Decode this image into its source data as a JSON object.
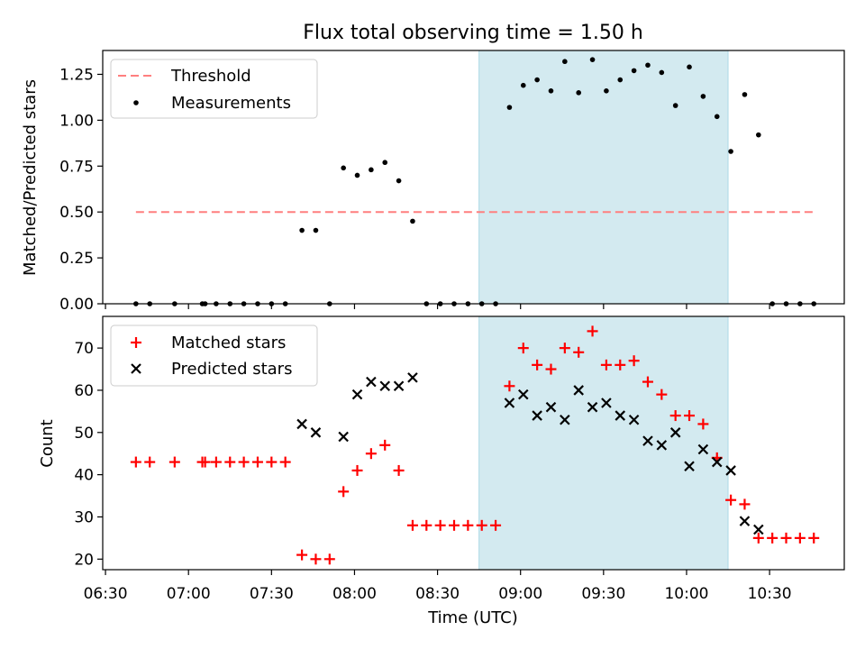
{
  "title": "Flux total observing time = 1.50 h",
  "xlabel": "Time (UTC)",
  "x_ticks": [
    "06:30",
    "07:00",
    "07:30",
    "08:00",
    "08:30",
    "09:00",
    "09:30",
    "10:00",
    "10:30"
  ],
  "colors": {
    "threshold": "#ff7f7f",
    "measurement": "#000000",
    "matched": "#ff0000",
    "predicted": "#000000",
    "shade_fill": "#d3eaf0",
    "shade_edge": "#add8e6"
  },
  "chart_data": [
    {
      "type": "scatter",
      "panel": "top",
      "ylabel": "Matched/Predicted stars",
      "ylim": [
        0,
        1.38
      ],
      "xlim": [
        "06:29",
        "10:57"
      ],
      "y_ticks": [
        "0.00",
        "0.25",
        "0.50",
        "0.75",
        "1.00",
        "1.25"
      ],
      "threshold": {
        "label": "Threshold",
        "value": 0.5,
        "x_range": [
          "06:41",
          "10:46"
        ]
      },
      "shaded_interval": [
        "08:45",
        "10:15"
      ],
      "series": [
        {
          "name": "Measurements",
          "x": [
            "06:41",
            "06:46",
            "06:55",
            "07:05",
            "07:06",
            "07:10",
            "07:15",
            "07:20",
            "07:25",
            "07:30",
            "07:35",
            "07:41",
            "07:46",
            "07:51",
            "07:56",
            "08:01",
            "08:06",
            "08:11",
            "08:16",
            "08:21",
            "08:26",
            "08:31",
            "08:36",
            "08:41",
            "08:46",
            "08:51",
            "08:56",
            "09:01",
            "09:06",
            "09:11",
            "09:16",
            "09:21",
            "09:26",
            "09:31",
            "09:36",
            "09:41",
            "09:46",
            "09:51",
            "09:56",
            "10:01",
            "10:06",
            "10:11",
            "10:16",
            "10:21",
            "10:26",
            "10:31",
            "10:36",
            "10:41",
            "10:46"
          ],
          "y": [
            0,
            0,
            0,
            0,
            0,
            0,
            0,
            0,
            0,
            0,
            0,
            0.4,
            0.4,
            0,
            0.74,
            0.7,
            0.73,
            0.77,
            0.67,
            0.45,
            0,
            0,
            0,
            0,
            0,
            0,
            1.07,
            1.19,
            1.22,
            1.16,
            1.32,
            1.15,
            1.33,
            1.16,
            1.22,
            1.27,
            1.3,
            1.26,
            1.08,
            1.29,
            1.13,
            1.02,
            0.83,
            1.14,
            0.92,
            0,
            0,
            0,
            0
          ]
        }
      ]
    },
    {
      "type": "scatter",
      "panel": "bottom",
      "ylabel": "Count",
      "ylim": [
        17.5,
        77.5
      ],
      "xlim": [
        "06:29",
        "10:57"
      ],
      "y_ticks": [
        "20",
        "30",
        "40",
        "50",
        "60",
        "70"
      ],
      "shaded_interval": [
        "08:45",
        "10:15"
      ],
      "series": [
        {
          "name": "Matched stars",
          "marker": "+",
          "x": [
            "06:41",
            "06:46",
            "06:55",
            "07:05",
            "07:06",
            "07:10",
            "07:15",
            "07:20",
            "07:25",
            "07:30",
            "07:35",
            "07:41",
            "07:46",
            "07:51",
            "07:56",
            "08:01",
            "08:06",
            "08:11",
            "08:16",
            "08:21",
            "08:26",
            "08:31",
            "08:36",
            "08:41",
            "08:46",
            "08:51",
            "08:56",
            "09:01",
            "09:06",
            "09:11",
            "09:16",
            "09:21",
            "09:26",
            "09:31",
            "09:36",
            "09:41",
            "09:46",
            "09:51",
            "09:56",
            "10:01",
            "10:06",
            "10:11",
            "10:16",
            "10:21",
            "10:26",
            "10:31",
            "10:36",
            "10:41",
            "10:46"
          ],
          "y": [
            43,
            43,
            43,
            43,
            43,
            43,
            43,
            43,
            43,
            43,
            43,
            21,
            20,
            20,
            36,
            41,
            45,
            47,
            41,
            28,
            28,
            28,
            28,
            28,
            28,
            28,
            61,
            70,
            66,
            65,
            70,
            69,
            74,
            66,
            66,
            67,
            62,
            59,
            54,
            54,
            52,
            44,
            34,
            33,
            25,
            25,
            25,
            25,
            25
          ]
        },
        {
          "name": "Predicted stars",
          "marker": "x",
          "x": [
            "07:41",
            "07:46",
            "07:56",
            "08:01",
            "08:06",
            "08:11",
            "08:16",
            "08:21",
            "08:56",
            "09:01",
            "09:06",
            "09:11",
            "09:16",
            "09:21",
            "09:26",
            "09:31",
            "09:36",
            "09:41",
            "09:46",
            "09:51",
            "09:56",
            "10:01",
            "10:06",
            "10:11",
            "10:16",
            "10:21",
            "10:26"
          ],
          "y": [
            52,
            50,
            49,
            59,
            62,
            61,
            61,
            63,
            57,
            59,
            54,
            56,
            53,
            60,
            56,
            57,
            54,
            53,
            48,
            47,
            50,
            42,
            46,
            43,
            41,
            29,
            27
          ]
        }
      ]
    }
  ]
}
